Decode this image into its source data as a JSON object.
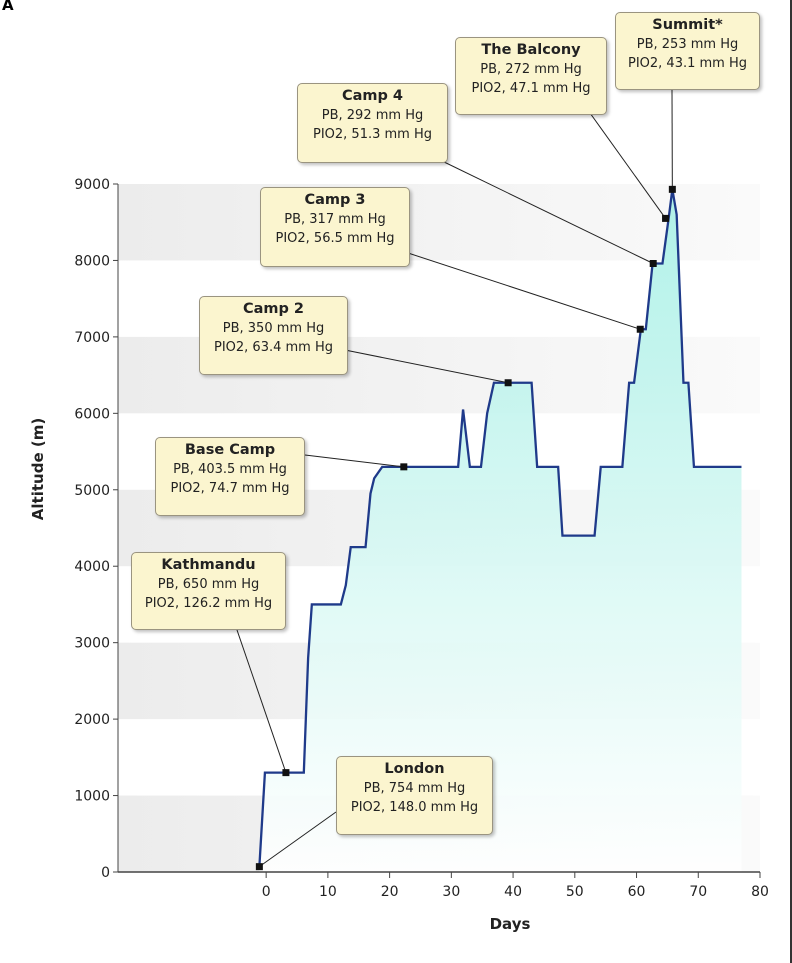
{
  "panel_label": "A",
  "chart_data": {
    "type": "line",
    "title": "",
    "xlabel": "Days",
    "ylabel": "Altitude (m)",
    "xlim": [
      -24,
      80
    ],
    "ylim": [
      0,
      9000
    ],
    "xticks": [
      0,
      10,
      20,
      30,
      40,
      50,
      60,
      70,
      80
    ],
    "yticks": [
      0,
      1000,
      2000,
      3000,
      4000,
      5000,
      6000,
      7000,
      8000,
      9000
    ],
    "grid": "alternating horizontal bands",
    "colors": {
      "line": "#1f3a8a",
      "fill_top": "#a8f0e6",
      "fill_bottom": "#ffffff",
      "band": "#ececec",
      "box": "#fbf5cf"
    },
    "series": [
      {
        "name": "Altitude",
        "points": [
          [
            -1.1,
            70
          ],
          [
            -0.2,
            1300
          ],
          [
            6.1,
            1300
          ],
          [
            6.8,
            2800
          ],
          [
            7.4,
            3500
          ],
          [
            12.1,
            3500
          ],
          [
            12.9,
            3750
          ],
          [
            13.7,
            4250
          ],
          [
            16.1,
            4250
          ],
          [
            16.9,
            4950
          ],
          [
            17.5,
            5150
          ],
          [
            18.8,
            5300
          ],
          [
            31.1,
            5300
          ],
          [
            31.9,
            6050
          ],
          [
            33.0,
            5300
          ],
          [
            34.8,
            5300
          ],
          [
            35.8,
            6000
          ],
          [
            36.9,
            6400
          ],
          [
            43.0,
            6400
          ],
          [
            43.9,
            5300
          ],
          [
            47.3,
            5300
          ],
          [
            48.0,
            4400
          ],
          [
            53.2,
            4400
          ],
          [
            54.2,
            5300
          ],
          [
            57.7,
            5300
          ],
          [
            58.8,
            6400
          ],
          [
            59.6,
            6400
          ],
          [
            60.7,
            7100
          ],
          [
            61.5,
            7100
          ],
          [
            62.6,
            7960
          ],
          [
            64.2,
            7960
          ],
          [
            65.2,
            8550
          ],
          [
            65.8,
            8930
          ],
          [
            66.5,
            8600
          ],
          [
            67.6,
            6400
          ],
          [
            68.4,
            6400
          ],
          [
            69.3,
            5300
          ],
          [
            77,
            5300
          ]
        ]
      }
    ],
    "annotations": [
      {
        "name": "Summit*",
        "pb": "PB, 253 mm Hg",
        "pio2": "PIO2, 43.1 mm Hg",
        "x": 65.8,
        "y": 8930
      },
      {
        "name": "The Balcony",
        "pb": "PB, 272 mm Hg",
        "pio2": "PIO2, 47.1 mm Hg",
        "x": 64.7,
        "y": 8550
      },
      {
        "name": "Camp 4",
        "pb": "PB, 292 mm Hg",
        "pio2": "PIO2, 51.3 mm Hg",
        "x": 62.7,
        "y": 7960
      },
      {
        "name": "Camp 3",
        "pb": "PB, 317 mm Hg",
        "pio2": "PIO2, 56.5 mm Hg",
        "x": 60.6,
        "y": 7100
      },
      {
        "name": "Camp 2",
        "pb": "PB, 350 mm Hg",
        "pio2": "PIO2, 63.4 mm Hg",
        "x": 39.2,
        "y": 6400
      },
      {
        "name": "Base Camp",
        "pb": "PB, 403.5 mm Hg",
        "pio2": "PIO2, 74.7 mm Hg",
        "x": 22.3,
        "y": 5300
      },
      {
        "name": "Kathmandu",
        "pb": "PB, 650 mm Hg",
        "pio2": "PIO2, 126.2 mm Hg",
        "x": 3.2,
        "y": 1300
      },
      {
        "name": "London",
        "pb": "PB, 754 mm Hg",
        "pio2": "PIO2, 148.0 mm Hg",
        "x": -1.1,
        "y": 70
      }
    ]
  }
}
